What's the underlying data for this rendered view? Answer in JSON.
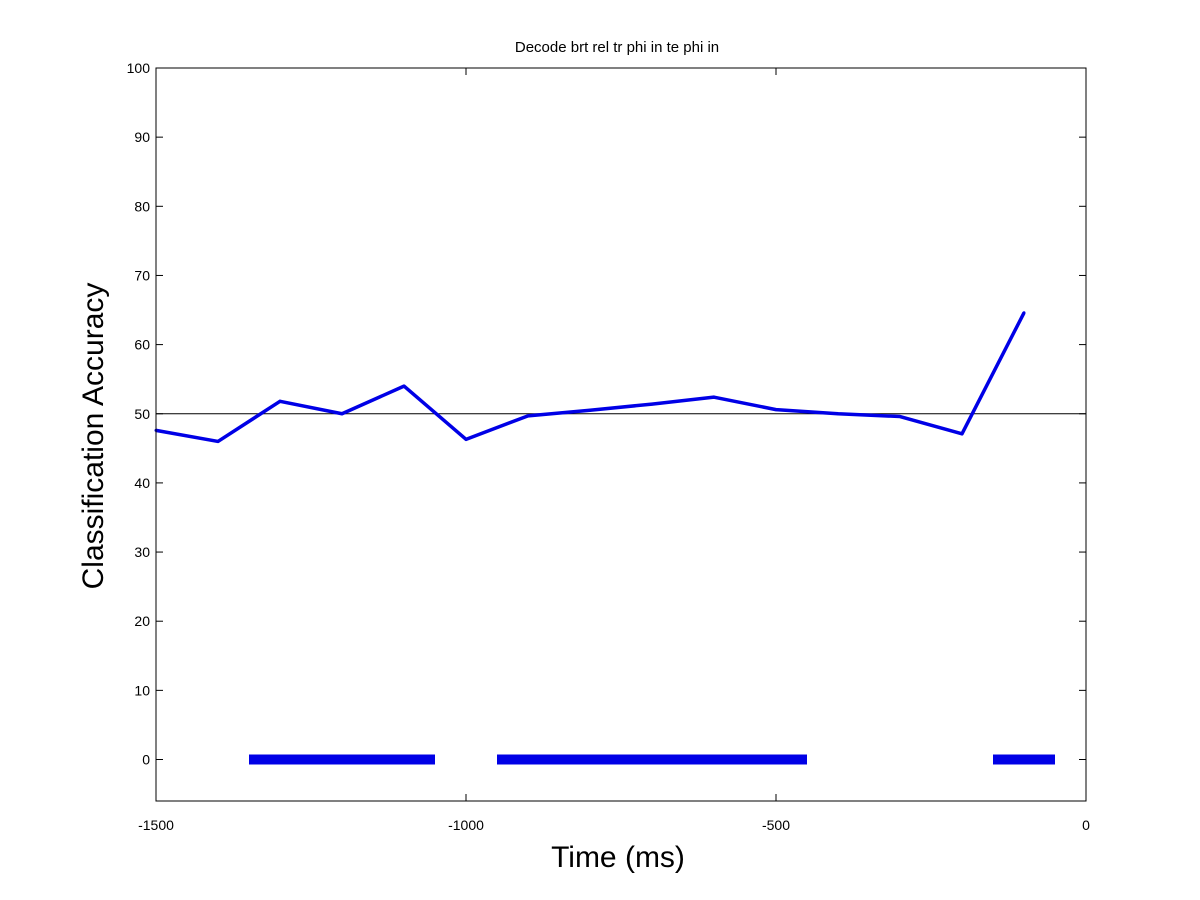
{
  "chart_data": {
    "type": "line",
    "title": "Decode brt rel tr phi in te phi in",
    "xlabel": "Time (ms)",
    "ylabel": "Classification Accuracy",
    "xlim": [
      -1500,
      0
    ],
    "ylim": [
      -6,
      100
    ],
    "xticks": [
      -1500,
      -1000,
      -500,
      0
    ],
    "yticks": [
      0,
      10,
      20,
      30,
      40,
      50,
      60,
      70,
      80,
      90,
      100
    ],
    "grid": false,
    "reference_line": {
      "y": 50,
      "color": "#000000"
    },
    "series": [
      {
        "color": "#0000e6",
        "x": [
          -1500,
          -1400,
          -1300,
          -1200,
          -1100,
          -1000,
          -900,
          -800,
          -700,
          -600,
          -500,
          -400,
          -300,
          -200,
          -100
        ],
        "y": [
          47.6,
          46.0,
          51.8,
          50.0,
          54.0,
          46.3,
          49.7,
          50.5,
          51.4,
          52.4,
          50.6,
          50.0,
          49.6,
          47.1,
          64.6
        ]
      }
    ],
    "significance_bars": {
      "y": 0,
      "color": "#0000e6",
      "segments": [
        [
          -1350,
          -1050
        ],
        [
          -950,
          -450
        ],
        [
          -150,
          -50
        ]
      ]
    }
  }
}
